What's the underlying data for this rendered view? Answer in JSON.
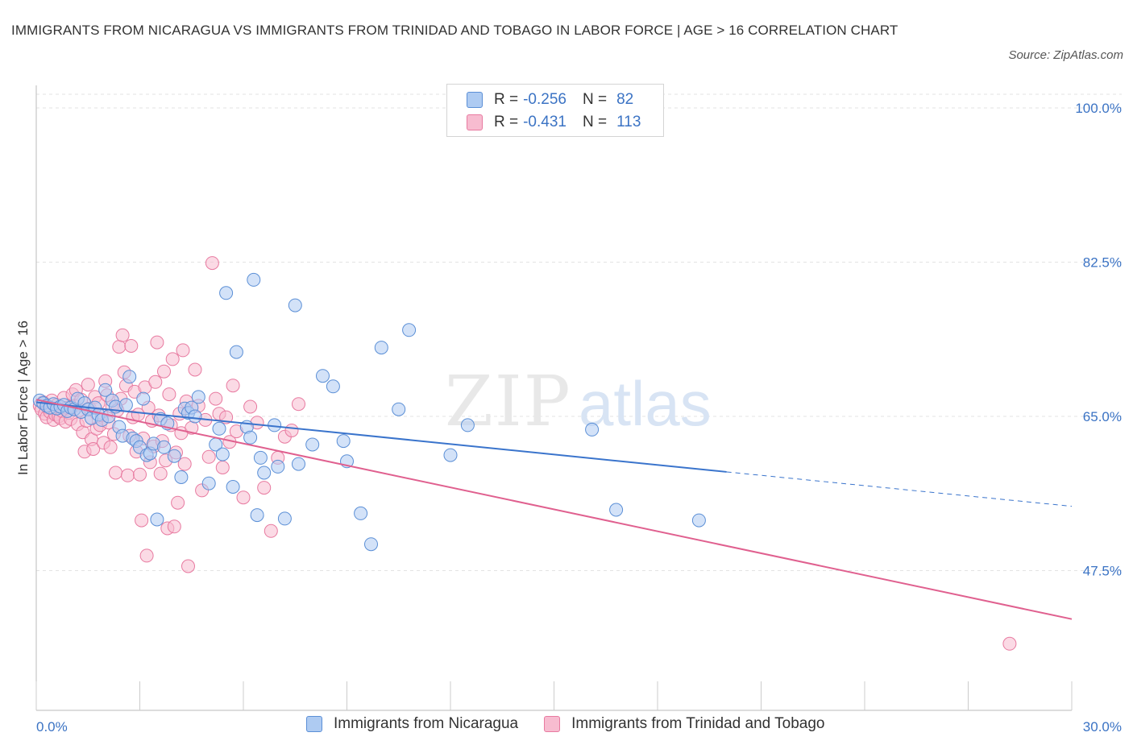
{
  "title": "IMMIGRANTS FROM NICARAGUA VS IMMIGRANTS FROM TRINIDAD AND TOBAGO IN LABOR FORCE | AGE > 16 CORRELATION CHART",
  "source": "Source: ZipAtlas.com",
  "watermark": {
    "zip": "ZIP",
    "atlas": "atlas"
  },
  "legend": {
    "rows": [
      {
        "r_label": "R =",
        "r_value": "-0.256",
        "n_label": "N =",
        "n_value": "82"
      },
      {
        "r_label": "R =",
        "r_value": "-0.431",
        "n_label": "N =",
        "n_value": "113"
      }
    ]
  },
  "bottom_legend": [
    {
      "label": "Immigrants from Nicaragua"
    },
    {
      "label": "Immigrants from Trinidad and Tobago"
    }
  ],
  "colors": {
    "blue_fill": "#aecbf2",
    "blue_stroke": "#5b8fd6",
    "blue_line": "#3a74cc",
    "pink_fill": "#f7bcd0",
    "pink_stroke": "#e87aa0",
    "pink_line": "#e0608f",
    "tick_text": "#3b73c4",
    "grid": "#e3e3e3"
  },
  "chart_data": {
    "type": "scatter",
    "title": "IMMIGRANTS FROM NICARAGUA VS IMMIGRANTS FROM TRINIDAD AND TOBAGO IN LABOR FORCE | AGE > 16 CORRELATION CHART",
    "xlabel": "",
    "ylabel": "In Labor Force | Age > 16",
    "xlim": [
      0,
      30
    ],
    "ylim": [
      31,
      101.5
    ],
    "x_tick_labels": [
      "0.0%",
      "30.0%"
    ],
    "y_ticks": [
      100.0,
      82.5,
      65.0,
      47.5
    ],
    "y_tick_labels": [
      "100.0%",
      "82.5%",
      "65.0%",
      "47.5%"
    ],
    "grid": true,
    "legend_position": "top-center",
    "series": [
      {
        "name": "Immigrants from Nicaragua",
        "r": -0.256,
        "n": 82,
        "trend": {
          "x0": 0.0,
          "y0": 66.6,
          "x1": 20.0,
          "y1": 58.7,
          "dashed_to_x": 30.0,
          "dashed_to_y": 54.8
        },
        "points": [
          [
            0.1,
            66.8
          ],
          [
            0.2,
            66.5
          ],
          [
            0.3,
            66.2
          ],
          [
            0.4,
            66.0
          ],
          [
            0.5,
            66.4
          ],
          [
            0.6,
            65.9
          ],
          [
            0.7,
            66.1
          ],
          [
            0.8,
            66.3
          ],
          [
            0.9,
            65.6
          ],
          [
            1.0,
            66.0
          ],
          [
            1.1,
            65.8
          ],
          [
            1.2,
            67.0
          ],
          [
            1.3,
            65.5
          ],
          [
            1.4,
            66.5
          ],
          [
            1.5,
            65.8
          ],
          [
            1.6,
            64.8
          ],
          [
            1.7,
            66.0
          ],
          [
            1.8,
            65.2
          ],
          [
            1.9,
            64.6
          ],
          [
            2.0,
            68.0
          ],
          [
            2.1,
            65.0
          ],
          [
            2.2,
            66.8
          ],
          [
            2.3,
            66.1
          ],
          [
            2.4,
            63.8
          ],
          [
            2.5,
            62.8
          ],
          [
            2.6,
            66.3
          ],
          [
            2.7,
            69.5
          ],
          [
            2.8,
            62.5
          ],
          [
            2.9,
            62.2
          ],
          [
            3.0,
            61.5
          ],
          [
            3.1,
            67.0
          ],
          [
            3.2,
            60.6
          ],
          [
            3.3,
            60.8
          ],
          [
            3.4,
            61.9
          ],
          [
            3.5,
            53.3
          ],
          [
            3.6,
            64.7
          ],
          [
            3.7,
            61.5
          ],
          [
            3.8,
            64.2
          ],
          [
            4.0,
            60.5
          ],
          [
            4.2,
            58.1
          ],
          [
            4.3,
            65.9
          ],
          [
            4.4,
            65.4
          ],
          [
            4.5,
            66.0
          ],
          [
            4.6,
            65.0
          ],
          [
            4.7,
            67.2
          ],
          [
            5.0,
            57.4
          ],
          [
            5.2,
            61.8
          ],
          [
            5.3,
            63.6
          ],
          [
            5.4,
            60.7
          ],
          [
            5.5,
            79.0
          ],
          [
            5.7,
            57.0
          ],
          [
            5.8,
            72.3
          ],
          [
            6.1,
            63.8
          ],
          [
            6.2,
            62.6
          ],
          [
            6.3,
            80.5
          ],
          [
            6.4,
            53.8
          ],
          [
            6.5,
            60.3
          ],
          [
            6.6,
            58.6
          ],
          [
            6.9,
            64.0
          ],
          [
            7.0,
            59.3
          ],
          [
            7.2,
            53.4
          ],
          [
            7.5,
            77.6
          ],
          [
            7.6,
            59.6
          ],
          [
            8.0,
            61.8
          ],
          [
            8.3,
            69.6
          ],
          [
            8.6,
            68.4
          ],
          [
            8.9,
            62.2
          ],
          [
            9.0,
            59.9
          ],
          [
            9.4,
            54.0
          ],
          [
            9.7,
            50.5
          ],
          [
            10.0,
            72.8
          ],
          [
            10.5,
            65.8
          ],
          [
            10.8,
            74.8
          ],
          [
            12.0,
            60.6
          ],
          [
            12.5,
            64.0
          ],
          [
            16.1,
            63.5
          ],
          [
            16.8,
            54.4
          ],
          [
            19.2,
            53.2
          ]
        ]
      },
      {
        "name": "Immigrants from Trinidad and Tobago",
        "r": -0.431,
        "n": 113,
        "trend": {
          "x0": 0.0,
          "y0": 66.9,
          "x1": 30.0,
          "y1": 42.0
        },
        "points": [
          [
            0.1,
            66.2
          ],
          [
            0.15,
            65.8
          ],
          [
            0.2,
            66.6
          ],
          [
            0.25,
            65.3
          ],
          [
            0.3,
            64.9
          ],
          [
            0.35,
            66.0
          ],
          [
            0.4,
            65.5
          ],
          [
            0.45,
            66.8
          ],
          [
            0.5,
            64.6
          ],
          [
            0.55,
            65.2
          ],
          [
            0.6,
            66.3
          ],
          [
            0.65,
            65.0
          ],
          [
            0.7,
            64.8
          ],
          [
            0.75,
            65.6
          ],
          [
            0.8,
            67.1
          ],
          [
            0.85,
            64.4
          ],
          [
            0.9,
            66.0
          ],
          [
            0.95,
            65.4
          ],
          [
            1.0,
            64.7
          ],
          [
            1.05,
            67.5
          ],
          [
            1.1,
            66.2
          ],
          [
            1.15,
            68.0
          ],
          [
            1.2,
            64.1
          ],
          [
            1.25,
            65.7
          ],
          [
            1.3,
            66.9
          ],
          [
            1.35,
            63.2
          ],
          [
            1.4,
            61.0
          ],
          [
            1.45,
            64.5
          ],
          [
            1.5,
            68.6
          ],
          [
            1.55,
            65.9
          ],
          [
            1.6,
            62.4
          ],
          [
            1.65,
            61.3
          ],
          [
            1.7,
            67.2
          ],
          [
            1.75,
            63.6
          ],
          [
            1.8,
            66.5
          ],
          [
            1.85,
            64.0
          ],
          [
            1.9,
            65.1
          ],
          [
            1.95,
            62.0
          ],
          [
            2.0,
            69.0
          ],
          [
            2.05,
            67.4
          ],
          [
            2.1,
            64.3
          ],
          [
            2.15,
            61.5
          ],
          [
            2.2,
            66.1
          ],
          [
            2.25,
            63.0
          ],
          [
            2.3,
            58.6
          ],
          [
            2.35,
            65.7
          ],
          [
            2.4,
            72.9
          ],
          [
            2.45,
            67.0
          ],
          [
            2.5,
            74.2
          ],
          [
            2.55,
            70.0
          ],
          [
            2.6,
            68.5
          ],
          [
            2.65,
            58.3
          ],
          [
            2.7,
            62.8
          ],
          [
            2.75,
            73.0
          ],
          [
            2.8,
            64.9
          ],
          [
            2.85,
            67.8
          ],
          [
            2.9,
            61.0
          ],
          [
            2.95,
            65.2
          ],
          [
            3.0,
            58.4
          ],
          [
            3.05,
            53.2
          ],
          [
            3.1,
            62.5
          ],
          [
            3.15,
            68.3
          ],
          [
            3.2,
            49.2
          ],
          [
            3.25,
            66.0
          ],
          [
            3.3,
            59.8
          ],
          [
            3.35,
            64.5
          ],
          [
            3.4,
            61.6
          ],
          [
            3.45,
            68.9
          ],
          [
            3.5,
            73.4
          ],
          [
            3.55,
            65.1
          ],
          [
            3.6,
            58.5
          ],
          [
            3.65,
            62.2
          ],
          [
            3.7,
            70.1
          ],
          [
            3.75,
            60.0
          ],
          [
            3.8,
            52.3
          ],
          [
            3.85,
            67.5
          ],
          [
            3.9,
            64.0
          ],
          [
            3.95,
            71.5
          ],
          [
            4.0,
            52.5
          ],
          [
            4.05,
            60.9
          ],
          [
            4.1,
            55.2
          ],
          [
            4.15,
            65.3
          ],
          [
            4.2,
            63.1
          ],
          [
            4.25,
            72.5
          ],
          [
            4.3,
            59.6
          ],
          [
            4.35,
            66.7
          ],
          [
            4.4,
            48.0
          ],
          [
            4.5,
            63.7
          ],
          [
            4.6,
            70.3
          ],
          [
            4.7,
            66.2
          ],
          [
            4.8,
            56.6
          ],
          [
            4.9,
            64.6
          ],
          [
            5.0,
            60.4
          ],
          [
            5.1,
            82.4
          ],
          [
            5.2,
            67.0
          ],
          [
            5.3,
            65.3
          ],
          [
            5.4,
            59.2
          ],
          [
            5.5,
            64.9
          ],
          [
            5.6,
            62.1
          ],
          [
            5.7,
            68.5
          ],
          [
            5.8,
            63.3
          ],
          [
            6.0,
            55.8
          ],
          [
            6.2,
            66.1
          ],
          [
            6.4,
            64.3
          ],
          [
            6.6,
            56.9
          ],
          [
            6.8,
            52.0
          ],
          [
            7.0,
            60.3
          ],
          [
            7.2,
            62.7
          ],
          [
            7.4,
            63.4
          ],
          [
            7.6,
            66.4
          ],
          [
            28.2,
            39.2
          ]
        ]
      }
    ]
  }
}
